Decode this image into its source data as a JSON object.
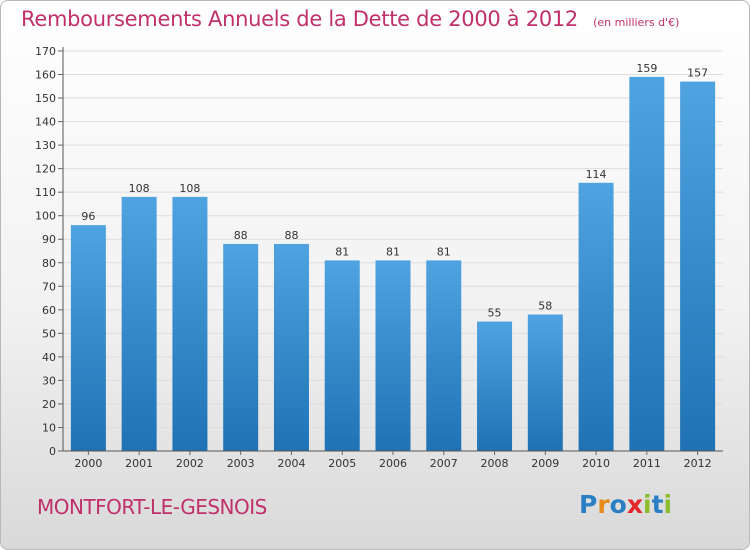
{
  "header": {
    "title": "Remboursements Annuels de la Dette de 2000 à 2012",
    "unit": "(en milliers d'€)"
  },
  "footer": {
    "commune": "MONTFORT-LE-GESNOIS",
    "logo_text": "Proxiti",
    "logo_colors": [
      "#2a7fc4",
      "#e98a1c",
      "#2a7fc4",
      "#e2262a",
      "#8bbd2d",
      "#2a7fc4",
      "#8bbd2d"
    ]
  },
  "chart_data": {
    "type": "bar",
    "categories": [
      "2000",
      "2001",
      "2002",
      "2003",
      "2004",
      "2005",
      "2006",
      "2007",
      "2008",
      "2009",
      "2010",
      "2011",
      "2012"
    ],
    "values": [
      96,
      108,
      108,
      88,
      88,
      81,
      81,
      81,
      55,
      58,
      114,
      159,
      157
    ],
    "data_labels": [
      "96",
      "108",
      "108",
      "88",
      "88",
      "81",
      "81",
      "81",
      "55",
      "58",
      "114",
      "159",
      "157"
    ],
    "ylim": [
      0,
      170
    ],
    "yticks": [
      0,
      10,
      20,
      30,
      40,
      50,
      60,
      70,
      80,
      90,
      100,
      110,
      120,
      130,
      140,
      150,
      160,
      170
    ],
    "grid": true,
    "bar_color": "#4fa3e0",
    "bar_color_dark": "#1f72b4"
  }
}
